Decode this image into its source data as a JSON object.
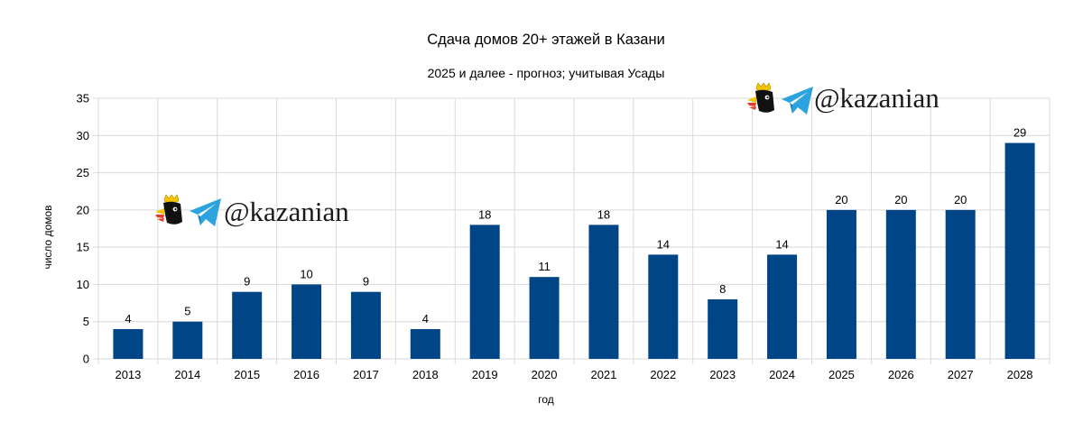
{
  "chart_data": {
    "type": "bar",
    "title": "Сдача домов 20+ этажей в Казани",
    "subtitle": "2025 и далее - прогноз; учитывая Усады",
    "xlabel": "год",
    "ylabel": "число домов",
    "categories": [
      "2013",
      "2014",
      "2015",
      "2016",
      "2017",
      "2018",
      "2019",
      "2020",
      "2021",
      "2022",
      "2023",
      "2024",
      "2025",
      "2026",
      "2027",
      "2028"
    ],
    "values": [
      4,
      5,
      9,
      10,
      9,
      4,
      18,
      11,
      18,
      14,
      8,
      14,
      20,
      20,
      20,
      29
    ],
    "ylim": [
      0,
      35
    ],
    "yticks": [
      0,
      5,
      10,
      15,
      20,
      25,
      30,
      35
    ],
    "grid": true,
    "bar_color": "#004586",
    "grid_color": "#d9d9d9"
  },
  "watermarks": [
    {
      "text": "@kazanian",
      "icons": [
        "eagle-crown-icon",
        "telegram-icon"
      ]
    },
    {
      "text": "@kazanian",
      "icons": [
        "eagle-crown-icon",
        "telegram-icon"
      ]
    }
  ],
  "colors": {
    "telegram": "#2aa3df",
    "crown": "#f5c400",
    "beak": "#e63b2e"
  }
}
